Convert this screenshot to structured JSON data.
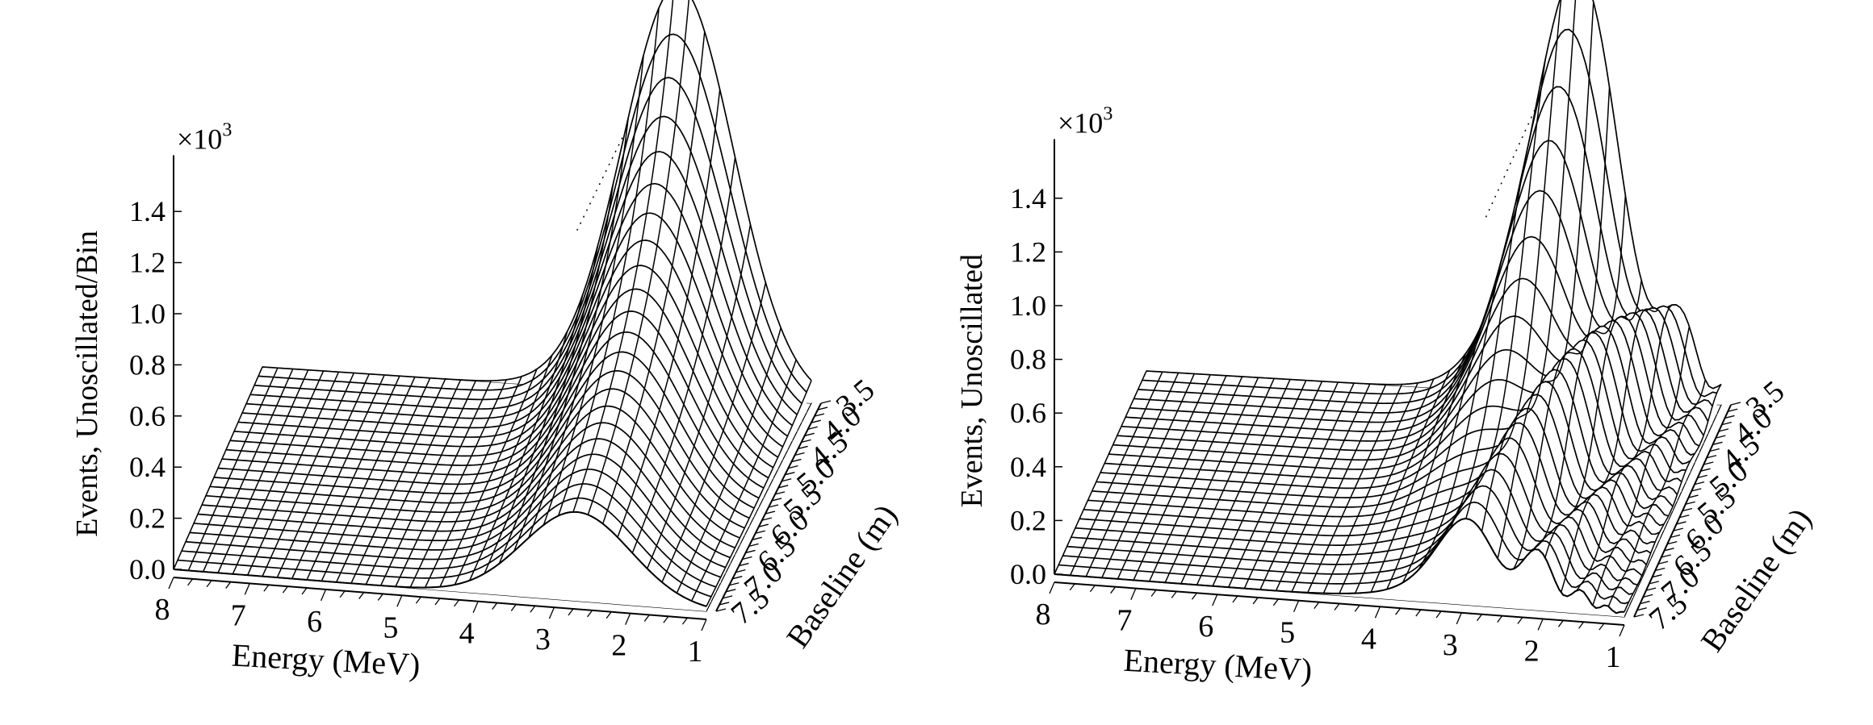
{
  "chart_data": [
    {
      "type": "surface",
      "ylabel": "Events, Unoscillated/Bin",
      "xlabel": "Energy (MeV)",
      "depth_label": "Baseline (m)",
      "scale_label": "×10",
      "scale_exponent": "3",
      "z_ticks": [
        "0.0",
        "0.2",
        "0.4",
        "0.6",
        "0.8",
        "1.0",
        "1.2",
        "1.4"
      ],
      "z_tick_values": [
        0,
        0.2,
        0.4,
        0.6,
        0.8,
        1.0,
        1.2,
        1.4
      ],
      "energy_ticks": [
        "8",
        "7",
        "6",
        "5",
        "4",
        "3",
        "2",
        "1"
      ],
      "energy_tick_values": [
        8,
        7,
        6,
        5,
        4,
        3,
        2,
        1
      ],
      "baseline_ticks": [
        "3.5",
        "4.0",
        "4.5",
        "5.0",
        "5.5",
        "6.0",
        "6.5",
        "7.0",
        "7.5"
      ],
      "baseline_tick_values": [
        3.5,
        4.0,
        4.5,
        5.0,
        5.5,
        6.0,
        6.5,
        7.0,
        7.5
      ],
      "energy_range": [
        1,
        8
      ],
      "baseline_range": [
        3.5,
        7.5
      ],
      "zlim": [
        0,
        1.5
      ],
      "peak_value": 1.6,
      "peak_energy": 2.7,
      "energy_width": 1.0,
      "oscillated": false
    },
    {
      "type": "surface",
      "ylabel": "Events, Unoscillated",
      "xlabel": "Energy (MeV)",
      "depth_label": "Baseline (m)",
      "scale_label": "×10",
      "scale_exponent": "3",
      "z_ticks": [
        "0.0",
        "0.2",
        "0.4",
        "0.6",
        "0.8",
        "1.0",
        "1.2",
        "1.4"
      ],
      "z_tick_values": [
        0,
        0.2,
        0.4,
        0.6,
        0.8,
        1.0,
        1.2,
        1.4
      ],
      "energy_ticks": [
        "8",
        "7",
        "6",
        "5",
        "4",
        "3",
        "2",
        "1"
      ],
      "energy_tick_values": [
        8,
        7,
        6,
        5,
        4,
        3,
        2,
        1
      ],
      "baseline_ticks": [
        "3.5",
        "4.0",
        "4.5",
        "5.0",
        "5.5",
        "6.0",
        "6.5",
        "7.0",
        "7.5"
      ],
      "baseline_tick_values": [
        3.5,
        4.0,
        4.5,
        5.0,
        5.5,
        6.0,
        6.5,
        7.0,
        7.5
      ],
      "energy_range": [
        1,
        8
      ],
      "baseline_range": [
        3.5,
        7.5
      ],
      "zlim": [
        0,
        1.5
      ],
      "peak_value": 1.6,
      "peak_energy": 2.7,
      "energy_width": 1.0,
      "oscillated": true
    }
  ]
}
